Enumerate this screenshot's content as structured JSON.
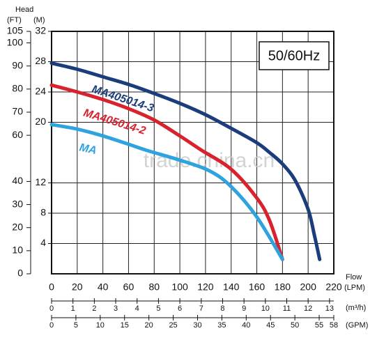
{
  "chart_data": {
    "type": "line",
    "annotation": "50/60Hz",
    "head_label": "Head",
    "ylabel": "(M)",
    "y2label": "(FT)",
    "flow_label": "Flow",
    "xlabel": "(LPM)",
    "watermark": "trade.china.cn",
    "xlim": [
      0,
      220
    ],
    "xticks": [
      0,
      20,
      40,
      60,
      80,
      100,
      120,
      140,
      160,
      180,
      200,
      220
    ],
    "ylim": [
      0,
      32
    ],
    "yticks": [
      4,
      8,
      12,
      20,
      24,
      28,
      32
    ],
    "y2lim": [
      0,
      105
    ],
    "y2ticks": [
      0,
      10,
      20,
      30,
      40,
      60,
      70,
      80,
      90,
      100,
      105
    ],
    "x2": {
      "label": "(m³/h)",
      "lim": [
        0,
        13.2
      ],
      "ticks": [
        0,
        1,
        2,
        3,
        4,
        5,
        6,
        7,
        8,
        9,
        10,
        11,
        12,
        13
      ]
    },
    "x3": {
      "label": "(GPM)",
      "lim": [
        0,
        58
      ],
      "ticks": [
        0,
        5,
        10,
        15,
        20,
        25,
        30,
        35,
        40,
        45,
        50,
        55,
        58
      ]
    },
    "grid": true,
    "series": [
      {
        "name": "MA405014-3",
        "color": "#1c3d7c",
        "x": [
          0,
          20,
          40,
          60,
          80,
          100,
          120,
          140,
          160,
          170,
          180,
          190,
          200,
          205,
          209
        ],
        "values": [
          27.8,
          27,
          26,
          25,
          23.8,
          22.5,
          21,
          19.2,
          17.3,
          16,
          14.5,
          12.3,
          8.5,
          5,
          1.9
        ]
      },
      {
        "name": "MA405014-2",
        "color": "#d8232e",
        "x": [
          0,
          20,
          40,
          60,
          80,
          100,
          117,
          140,
          160,
          170,
          180
        ],
        "values": [
          24.9,
          24,
          23,
          21.8,
          20.3,
          18.2,
          16.3,
          13.8,
          10,
          7,
          1.9
        ]
      },
      {
        "name": "MA",
        "color": "#2ea3e0",
        "x": [
          0,
          20,
          40,
          60,
          74,
          100,
          123,
          140,
          160,
          180
        ],
        "values": [
          19.7,
          19.1,
          18.2,
          17.1,
          16.3,
          15,
          13.6,
          11.5,
          7.5,
          1.9
        ]
      }
    ]
  }
}
